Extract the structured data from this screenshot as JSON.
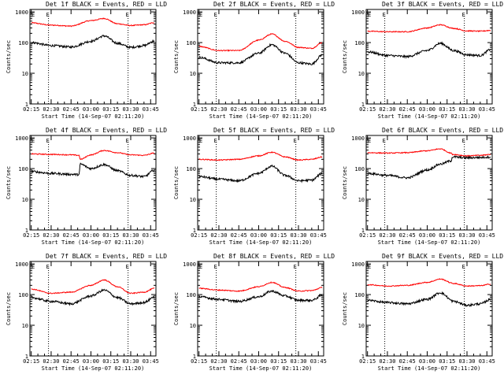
{
  "chart_data": {
    "type": "line",
    "xlabel": "Start Time (14-Sep-07 02:11:20)",
    "ylabel": "Counts/sec",
    "y_scale": "log",
    "ylim": [
      1,
      1200
    ],
    "y_ticks": [
      1,
      10,
      100,
      1000
    ],
    "y_tick_labels": [
      "1",
      "10",
      "100",
      "1000"
    ],
    "x_domain_minutes": [
      134,
      229
    ],
    "x_ticks_minutes": [
      135,
      150,
      165,
      180,
      195,
      210,
      225
    ],
    "x_tick_labels": [
      "02:15",
      "02:30",
      "02:45",
      "03:00",
      "03:15",
      "03:30",
      "03:45"
    ],
    "x_markers_minutes": [
      148,
      208
    ],
    "x_marker_labels": [
      "E",
      "E"
    ],
    "series_colors": {
      "events": "#000000",
      "lld": "#ff0000"
    },
    "panels": [
      {
        "title": "Det 1f BLACK = Events, RED = LLD",
        "x": [
          135,
          150,
          165,
          180,
          190,
          200,
          210,
          220,
          228
        ],
        "lld": [
          440,
          370,
          345,
          520,
          610,
          410,
          360,
          380,
          450
        ],
        "events": [
          100,
          80,
          72,
          110,
          165,
          95,
          70,
          80,
          115
        ]
      },
      {
        "title": "Det 2f BLACK = Events, RED = LLD",
        "x": [
          135,
          150,
          165,
          180,
          190,
          200,
          210,
          220,
          228
        ],
        "lld": [
          75,
          55,
          55,
          120,
          190,
          110,
          70,
          65,
          100
        ],
        "events": [
          33,
          22,
          22,
          45,
          85,
          45,
          22,
          20,
          40
        ]
      },
      {
        "title": "Det 3f BLACK = Events, RED = LLD",
        "x": [
          135,
          150,
          165,
          180,
          190,
          200,
          210,
          220,
          228
        ],
        "lld": [
          235,
          225,
          225,
          300,
          380,
          290,
          240,
          235,
          250
        ],
        "events": [
          50,
          38,
          35,
          55,
          95,
          55,
          40,
          38,
          60
        ]
      },
      {
        "title": "Det 4f BLACK = Events, RED = LLD",
        "x": [
          135,
          150,
          165,
          171,
          172,
          180,
          190,
          200,
          210,
          220,
          228
        ],
        "lld": [
          300,
          290,
          280,
          270,
          200,
          280,
          390,
          330,
          280,
          270,
          320
        ],
        "events": [
          80,
          70,
          65,
          64,
          140,
          100,
          135,
          85,
          60,
          55,
          90
        ]
      },
      {
        "title": "Det 5f BLACK = Events, RED = LLD",
        "x": [
          135,
          150,
          165,
          180,
          190,
          200,
          210,
          220,
          228
        ],
        "lld": [
          200,
          190,
          200,
          260,
          340,
          240,
          190,
          200,
          240
        ],
        "events": [
          55,
          45,
          40,
          70,
          120,
          60,
          40,
          42,
          70
        ]
      },
      {
        "title": "Det 6f BLACK = Events, RED = LLD",
        "x": [
          135,
          150,
          165,
          180,
          190,
          198,
          199,
          210,
          220,
          228
        ],
        "lld": [
          330,
          320,
          330,
          380,
          440,
          320,
          290,
          260,
          270,
          290
        ],
        "events": [
          70,
          60,
          50,
          90,
          140,
          180,
          240,
          225,
          230,
          240
        ]
      },
      {
        "title": "Det 7f BLACK = Events, RED = LLD",
        "x": [
          135,
          150,
          165,
          180,
          190,
          200,
          210,
          220,
          228
        ],
        "lld": [
          150,
          110,
          120,
          200,
          300,
          180,
          110,
          120,
          160
        ],
        "events": [
          80,
          60,
          50,
          90,
          140,
          80,
          50,
          55,
          85
        ]
      },
      {
        "title": "Det 8f BLACK = Events, RED = LLD",
        "x": [
          135,
          150,
          165,
          180,
          190,
          200,
          210,
          220,
          228
        ],
        "lld": [
          160,
          140,
          130,
          180,
          250,
          170,
          130,
          135,
          170
        ],
        "events": [
          85,
          70,
          60,
          85,
          130,
          90,
          65,
          65,
          95
        ]
      },
      {
        "title": "Det 9f BLACK = Events, RED = LLD",
        "x": [
          135,
          150,
          165,
          180,
          190,
          200,
          210,
          220,
          228
        ],
        "lld": [
          210,
          190,
          200,
          250,
          320,
          230,
          190,
          195,
          220
        ],
        "events": [
          65,
          55,
          50,
          70,
          115,
          60,
          45,
          50,
          70
        ]
      }
    ]
  }
}
